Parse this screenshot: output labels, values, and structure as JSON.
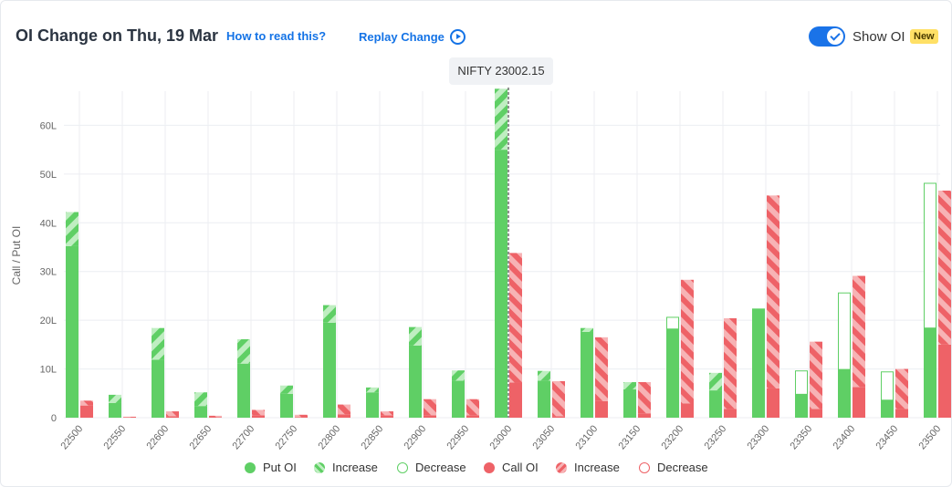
{
  "header": {
    "title": "OI Change on Thu, 19 Mar",
    "how_to_read": "How to read this?",
    "replay": "Replay Change",
    "show_oi_label": "Show OI",
    "new_badge": "New",
    "show_oi_on": true
  },
  "spot_label": "NIFTY 23002.15",
  "colors": {
    "put": "#5fcf65",
    "put_light": "#a8e5ab",
    "call": "#ee6267",
    "call_light": "#f5a3a6"
  },
  "chart_data": {
    "type": "bar",
    "ylabel": "Call / Put OI",
    "ylim": [
      0,
      67
    ],
    "yticks": [
      0,
      10,
      20,
      30,
      40,
      50,
      60
    ],
    "ytick_labels": [
      "0",
      "10L",
      "20L",
      "30L",
      "40L",
      "50L",
      "60L"
    ],
    "categories": [
      "22500",
      "22550",
      "22600",
      "22650",
      "22700",
      "22750",
      "22800",
      "22850",
      "22900",
      "22950",
      "23000",
      "23050",
      "23100",
      "23150",
      "23200",
      "23250",
      "23300",
      "23350",
      "23400",
      "23450",
      "23500"
    ],
    "spot_position": "23002.15",
    "series": [
      {
        "name": "Put OI",
        "values": [
          35.2,
          3.0,
          11.9,
          2.4,
          11.1,
          4.9,
          19.5,
          5.2,
          14.8,
          7.6,
          55.0,
          7.6,
          17.6,
          5.8,
          18.2,
          5.6,
          22.4,
          4.8,
          9.9,
          3.6,
          18.4
        ]
      },
      {
        "name": "Increase",
        "values": [
          7.0,
          1.7,
          6.5,
          2.8,
          5.0,
          1.7,
          3.6,
          1.0,
          3.8,
          2.1,
          12.5,
          2.0,
          0.8,
          1.5,
          0,
          3.6,
          0,
          0,
          0,
          0,
          0
        ]
      },
      {
        "name": "Decrease",
        "values": [
          0,
          0,
          0,
          0,
          0,
          0,
          0,
          0,
          0,
          0,
          0,
          0,
          0,
          0,
          2.4,
          0,
          0,
          4.8,
          15.7,
          5.8,
          29.7
        ]
      },
      {
        "name": "Call OI",
        "values": [
          2.5,
          0.1,
          0.3,
          0.1,
          0.5,
          0.1,
          0.7,
          0.5,
          0.5,
          0.5,
          7.2,
          0.3,
          3.4,
          0.9,
          2.9,
          1.8,
          6.0,
          1.8,
          6.3,
          1.8,
          15.0
        ]
      },
      {
        "name": "Increase",
        "values": [
          1.0,
          0.1,
          1.0,
          0.3,
          1.1,
          0.5,
          2.0,
          0.8,
          3.3,
          3.3,
          26.6,
          7.2,
          13.1,
          6.4,
          25.4,
          18.6,
          39.6,
          13.8,
          22.8,
          8.2,
          31.6
        ]
      },
      {
        "name": "Decrease",
        "values": [
          0,
          0,
          0,
          0,
          0,
          0,
          0,
          0,
          0,
          0,
          0,
          0,
          0,
          0,
          0,
          0,
          0,
          0,
          0,
          0,
          0
        ]
      }
    ]
  }
}
